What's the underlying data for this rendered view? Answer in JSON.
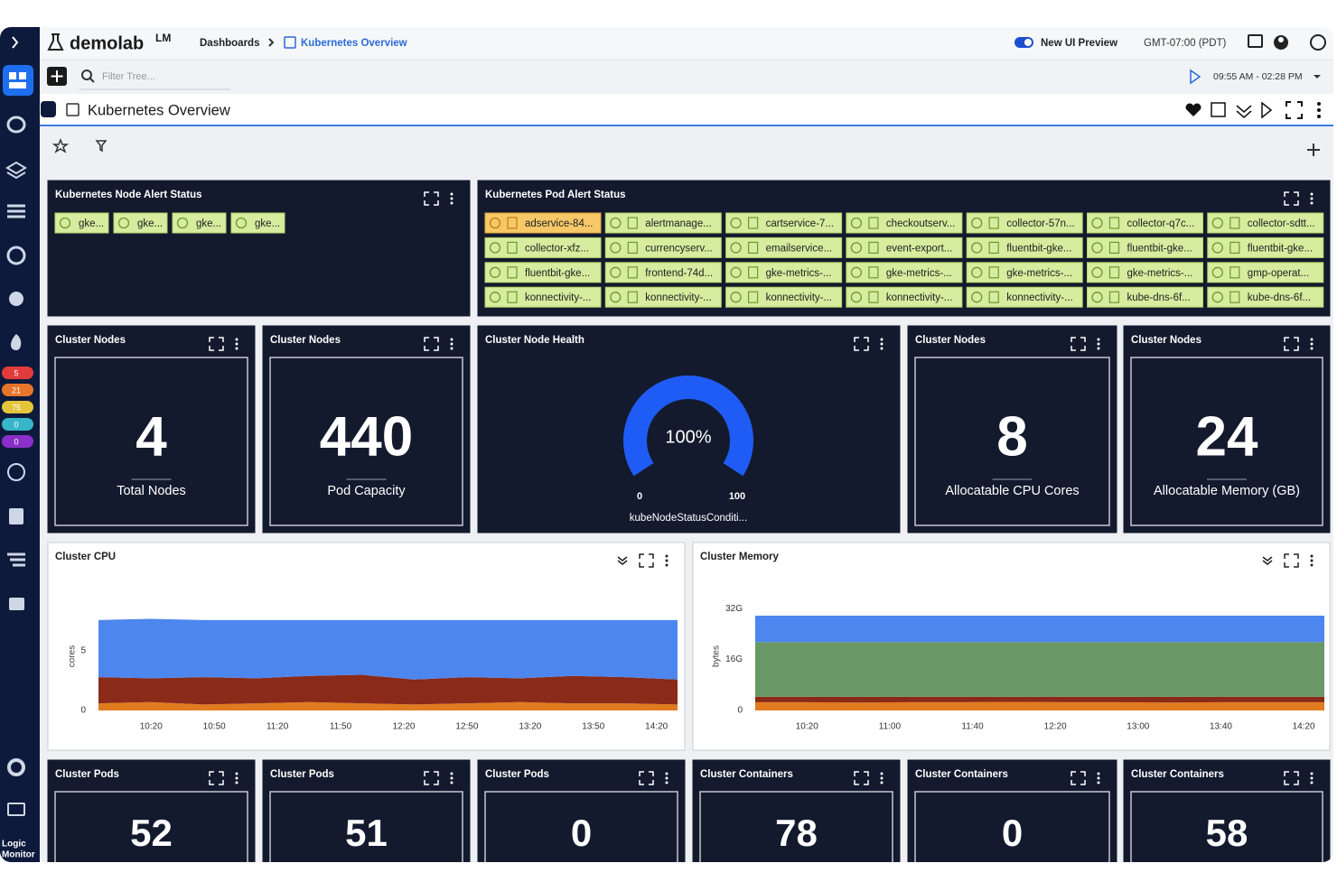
{
  "header": {
    "brand": "demolab",
    "brand_sup": "LM",
    "breadcrumb": [
      "Dashboards",
      "Kubernetes Overview"
    ],
    "toggle_label": "New UI Preview",
    "timezone": "GMT-07:00 (PDT)",
    "filter_placeholder": "Filter Tree...",
    "time_range": "09:55 AM - 02:28 PM"
  },
  "sidebar": {
    "badges": [
      "5",
      "21",
      "75",
      "0",
      "0"
    ],
    "logo": [
      "Logic",
      "Monitor"
    ]
  },
  "dashboard": {
    "title": "Kubernetes Overview"
  },
  "node_alert": {
    "title": "Kubernetes Node Alert Status",
    "items": [
      "gke...",
      "gke...",
      "gke...",
      "gke..."
    ]
  },
  "pod_alert": {
    "title": "Kubernetes Pod Alert Status",
    "items": [
      "adservice-84...",
      "alertmanage...",
      "cartservice-7...",
      "checkoutserv...",
      "collector-57n...",
      "collector-q7c...",
      "collector-sdtt...",
      "collector-xfz...",
      "currencyserv...",
      "emailservice...",
      "event-export...",
      "fluentbit-gke...",
      "fluentbit-gke...",
      "fluentbit-gke...",
      "fluentbit-gke...",
      "frontend-74d...",
      "gke-metrics-...",
      "gke-metrics-...",
      "gke-metrics-...",
      "gke-metrics-...",
      "gmp-operat...",
      "konnectivity-...",
      "konnectivity-...",
      "konnectivity-...",
      "konnectivity-...",
      "konnectivity-...",
      "kube-dns-6f...",
      "kube-dns-6f..."
    ]
  },
  "stats": [
    {
      "title": "Cluster Nodes",
      "value": 4,
      "caption": "Total Nodes"
    },
    {
      "title": "Cluster Nodes",
      "value": 440,
      "caption": "Pod Capacity"
    },
    {
      "title": "Cluster Nodes",
      "value": 8,
      "caption": "Allocatable CPU Cores"
    },
    {
      "title": "Cluster Nodes",
      "value": 24,
      "caption": "Allocatable Memory (GB)"
    },
    {
      "title": "Cluster Pods",
      "value": 52
    },
    {
      "title": "Cluster Pods",
      "value": 51
    },
    {
      "title": "Cluster Pods",
      "value": 0
    },
    {
      "title": "Cluster Containers",
      "value": 78
    },
    {
      "title": "Cluster Containers",
      "value": 0
    },
    {
      "title": "Cluster Containers",
      "value": 58
    }
  ],
  "gauge": {
    "title": "Cluster Node Health",
    "value": 100,
    "value_label": "100%",
    "min": 0,
    "max": 100,
    "caption": "kubeNodeStatusConditi..."
  },
  "charts": [
    {
      "type": "area",
      "title": "Cluster CPU",
      "y_label": "cores",
      "x": [
        595,
        620,
        645,
        670,
        695,
        720,
        745,
        770,
        795,
        820,
        845,
        870
      ],
      "xlim": [
        595,
        870
      ],
      "xticks": [
        {
          "value": 620,
          "label": "10:20"
        },
        {
          "value": 650,
          "label": "10:50"
        },
        {
          "value": 680,
          "label": "11:20"
        },
        {
          "value": 710,
          "label": "11:50"
        },
        {
          "value": 740,
          "label": "12:20"
        },
        {
          "value": 770,
          "label": "12:50"
        },
        {
          "value": 800,
          "label": "13:20"
        },
        {
          "value": 830,
          "label": "13:50"
        },
        {
          "value": 860,
          "label": "14:20"
        }
      ],
      "ylim": [
        0,
        11
      ],
      "yticks": [
        0,
        5
      ],
      "series": [
        {
          "color": "#e07b1f",
          "values": [
            0.6,
            0.7,
            0.5,
            0.6,
            0.7,
            0.6,
            0.5,
            0.6,
            0.7,
            0.6,
            0.6,
            0.5
          ]
        },
        {
          "color": "#8a2a18",
          "values": [
            2.2,
            2.0,
            2.3,
            2.1,
            2.2,
            2.4,
            2.1,
            2.2,
            2.0,
            2.3,
            2.2,
            2.1
          ]
        },
        {
          "color": "#4d86ee",
          "values": [
            4.8,
            5.0,
            4.8,
            4.9,
            4.7,
            4.6,
            5.0,
            4.8,
            4.9,
            4.7,
            4.8,
            5.0
          ]
        }
      ]
    },
    {
      "type": "area",
      "title": "Cluster Memory",
      "y_label": "bytes",
      "x": [
        595,
        620,
        645,
        670,
        695,
        720,
        745,
        770,
        795,
        820,
        845,
        870
      ],
      "xlim": [
        595,
        870
      ],
      "xticks": [
        {
          "value": 620,
          "label": "10:20"
        },
        {
          "value": 660,
          "label": "11:00"
        },
        {
          "value": 700,
          "label": "11:40"
        },
        {
          "value": 740,
          "label": "12:20"
        },
        {
          "value": 780,
          "label": "13:00"
        },
        {
          "value": 820,
          "label": "13:40"
        },
        {
          "value": 860,
          "label": "14:20"
        }
      ],
      "ylim": [
        0,
        40
      ],
      "yticks": [
        0,
        {
          "value": 16,
          "label": "16G"
        },
        {
          "value": 32,
          "label": "32G"
        }
      ],
      "series": [
        {
          "color": "#e07b1f",
          "values": [
            2.6,
            2.6,
            2.5,
            2.6,
            2.6,
            2.7,
            2.6,
            2.6,
            2.5,
            2.6,
            2.6,
            2.6
          ]
        },
        {
          "color": "#8a2a18",
          "values": [
            1.7,
            1.7,
            1.8,
            1.7,
            1.7,
            1.6,
            1.7,
            1.7,
            1.8,
            1.7,
            1.7,
            1.7
          ]
        },
        {
          "color": "#6a9866",
          "values": [
            17.2,
            17.2,
            17.2,
            17.2,
            17.2,
            17.2,
            17.2,
            17.2,
            17.2,
            17.2,
            17.2,
            17.2
          ]
        },
        {
          "color": "#4d86ee",
          "values": [
            8.3,
            8.3,
            8.3,
            8.3,
            8.3,
            8.3,
            8.3,
            8.3,
            8.3,
            8.3,
            8.3,
            8.3
          ]
        }
      ]
    }
  ]
}
